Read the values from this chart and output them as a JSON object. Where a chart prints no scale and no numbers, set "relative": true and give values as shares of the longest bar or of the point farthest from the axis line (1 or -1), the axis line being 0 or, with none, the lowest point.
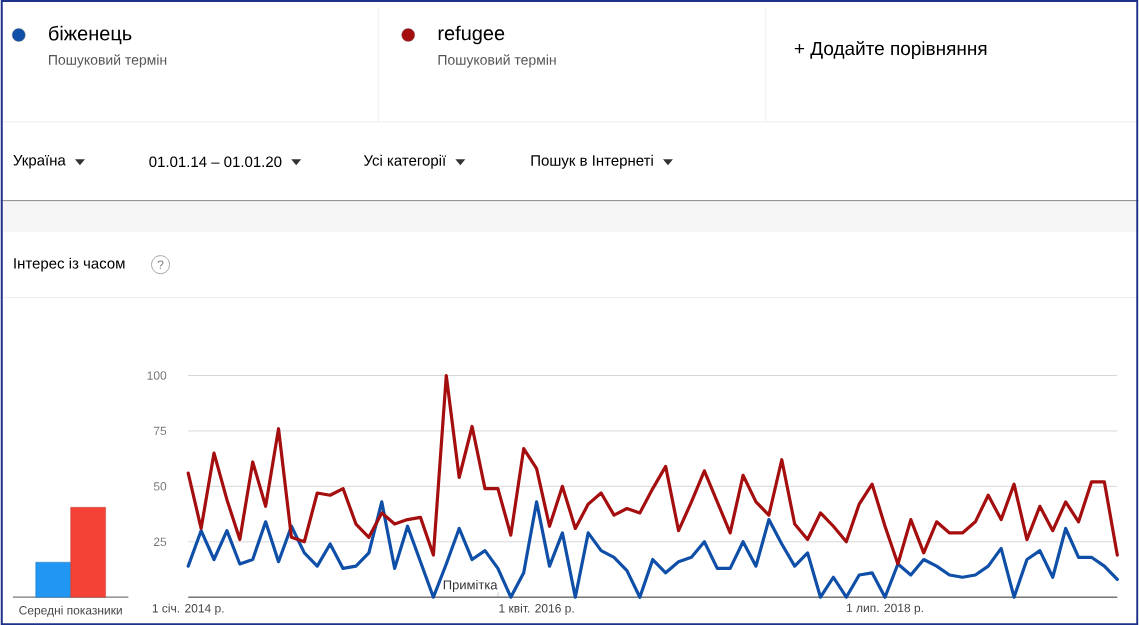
{
  "chart_data": [
    {
      "type": "line",
      "title": "Інтерес із часом",
      "x": [
        "2014-01",
        "2014-02",
        "2014-03",
        "2014-04",
        "2014-05",
        "2014-06",
        "2014-07",
        "2014-08",
        "2014-09",
        "2014-10",
        "2014-11",
        "2014-12",
        "2015-01",
        "2015-02",
        "2015-03",
        "2015-04",
        "2015-05",
        "2015-06",
        "2015-07",
        "2015-08",
        "2015-09",
        "2015-10",
        "2015-11",
        "2015-12",
        "2016-01",
        "2016-02",
        "2016-03",
        "2016-04",
        "2016-05",
        "2016-06",
        "2016-07",
        "2016-08",
        "2016-09",
        "2016-10",
        "2016-11",
        "2016-12",
        "2017-01",
        "2017-02",
        "2017-03",
        "2017-04",
        "2017-05",
        "2017-06",
        "2017-07",
        "2017-08",
        "2017-09",
        "2017-10",
        "2017-11",
        "2017-12",
        "2018-01",
        "2018-02",
        "2018-03",
        "2018-04",
        "2018-05",
        "2018-06",
        "2018-07",
        "2018-08",
        "2018-09",
        "2018-10",
        "2018-11",
        "2018-12",
        "2019-01",
        "2019-02",
        "2019-03",
        "2019-04",
        "2019-05",
        "2019-06",
        "2019-07",
        "2019-08",
        "2019-09",
        "2019-10",
        "2019-11",
        "2019-12",
        "2020-01"
      ],
      "series": [
        {
          "name": "біженець",
          "color": "#0f4fa8",
          "values": [
            14,
            30,
            17,
            30,
            15,
            17,
            34,
            16,
            32,
            20,
            14,
            24,
            13,
            14,
            20,
            43,
            13,
            32,
            16,
            0,
            15,
            31,
            17,
            21,
            13,
            0,
            11,
            43,
            14,
            29,
            0,
            29,
            21,
            18,
            12,
            0,
            17,
            11,
            16,
            18,
            25,
            13,
            13,
            25,
            14,
            35,
            24,
            14,
            20,
            0,
            9,
            0,
            10,
            11,
            0,
            15,
            10,
            17,
            14,
            10,
            9,
            10,
            14,
            22,
            0,
            17,
            21,
            9,
            31,
            18,
            18,
            14,
            8
          ]
        },
        {
          "name": "refugee",
          "color": "#a50e0e",
          "values": [
            56,
            31,
            65,
            44,
            26,
            61,
            41,
            76,
            27,
            25,
            47,
            46,
            49,
            33,
            27,
            38,
            33,
            35,
            36,
            19,
            100,
            54,
            77,
            49,
            49,
            28,
            67,
            58,
            32,
            50,
            31,
            42,
            47,
            37,
            40,
            38,
            49,
            59,
            30,
            43,
            57,
            43,
            29,
            55,
            43,
            37,
            62,
            33,
            26,
            38,
            32,
            25,
            42,
            51,
            32,
            15,
            35,
            20,
            34,
            29,
            29,
            34,
            46,
            35,
            51,
            26,
            41,
            30,
            43,
            34,
            52,
            52,
            19
          ]
        }
      ],
      "xlim": [
        "2014-01",
        "2020-01"
      ],
      "xticks": [
        {
          "value": "2014-01",
          "label": "1 січ. 2014 р."
        },
        {
          "value": "2016-04",
          "label": "1 квіт. 2016 р."
        },
        {
          "value": "2018-07",
          "label": "1 лип. 2018 р."
        }
      ],
      "ylim": [
        0,
        100
      ],
      "yticks": [
        {
          "value": 0,
          "label": null
        },
        25,
        50,
        75,
        100
      ],
      "grid": "y",
      "legend": "top",
      "marker": "none",
      "line_style": "solid",
      "annotations": [
        "Пошуковий термін",
        "Пошуковий термін",
        "+ Додайте порівняння",
        "Україна",
        "01.01.14 – 01.01.20",
        "Усі категорії",
        "Пошук в Інтернеті",
        "Примітка",
        "?"
      ]
    },
    {
      "type": "bar",
      "relative": true,
      "categories": [
        null,
        null
      ],
      "values": [
        0.39,
        1
      ],
      "colors": [
        "#2196f3",
        "#f44336"
      ],
      "xlabel": "Середні показники"
    }
  ]
}
